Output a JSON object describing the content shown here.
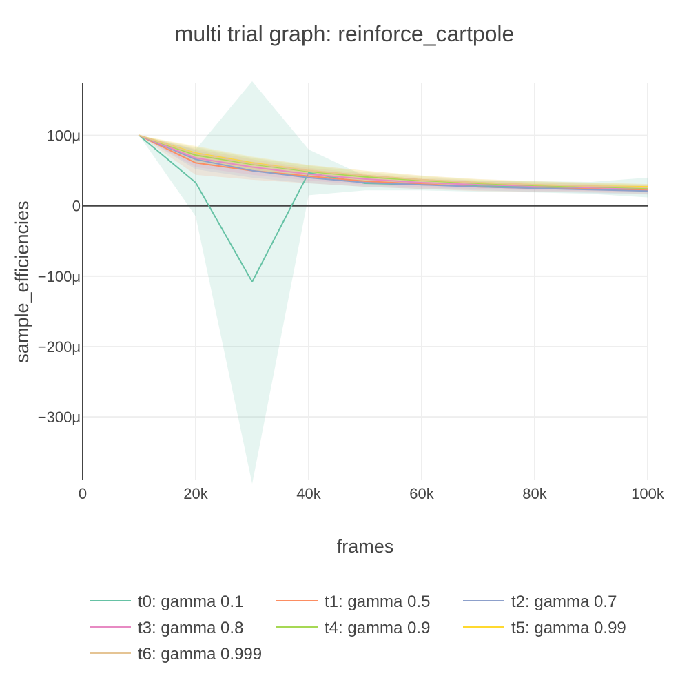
{
  "chart_data": {
    "type": "line",
    "title": "multi trial graph: reinforce_cartpole",
    "xlabel": "frames",
    "ylabel": "sample_efficiencies",
    "xlim": [
      0,
      100000
    ],
    "ylim": [
      -0.00039,
      0.000175
    ],
    "x_ticks": [
      0,
      20000,
      40000,
      60000,
      80000,
      100000
    ],
    "x_tick_labels": [
      "0",
      "20k",
      "40k",
      "60k",
      "80k",
      "100k"
    ],
    "y_ticks": [
      0.0001,
      0,
      -0.0001,
      -0.0002,
      -0.0003
    ],
    "y_tick_labels": [
      "100μ",
      "0",
      "−100μ",
      "−200μ",
      "−300μ"
    ],
    "grid": true,
    "legend_position": "bottom",
    "x": [
      10000,
      20000,
      30000,
      40000,
      50000,
      60000,
      70000,
      80000,
      90000,
      100000
    ],
    "series": [
      {
        "name": "t0: gamma 0.1",
        "color": "#66c2a5",
        "values": [
          0.0001,
          3.3e-05,
          -0.000108,
          4.7e-05,
          3.2e-05,
          3e-05,
          2.8e-05,
          2.7e-05,
          2.6e-05,
          2.6e-05
        ],
        "upper": [
          0.0001,
          8e-05,
          0.000177,
          8e-05,
          4.2e-05,
          3.8e-05,
          3.6e-05,
          3.5e-05,
          3.4e-05,
          4e-05
        ],
        "lower": [
          0.0001,
          -1.5e-05,
          -0.000395,
          1.5e-05,
          2.2e-05,
          2.2e-05,
          2e-05,
          1.9e-05,
          1.7e-05,
          1.2e-05
        ]
      },
      {
        "name": "t1: gamma 0.5",
        "color": "#fc8d62",
        "values": [
          0.0001,
          6.1e-05,
          5e-05,
          4.2e-05,
          3.5e-05,
          3.1e-05,
          2.7e-05,
          2.5e-05,
          2.4e-05,
          2.2e-05
        ],
        "upper": [
          0.0001,
          7.6e-05,
          6.3e-05,
          5.2e-05,
          4.3e-05,
          3.8e-05,
          3.3e-05,
          3e-05,
          2.9e-05,
          2.7e-05
        ],
        "lower": [
          0.0001,
          4.4e-05,
          3.7e-05,
          3.2e-05,
          2.7e-05,
          2.4e-05,
          2.1e-05,
          2e-05,
          1.9e-05,
          1.7e-05
        ]
      },
      {
        "name": "t2: gamma 0.7",
        "color": "#8da0cb",
        "values": [
          0.0001,
          6.6e-05,
          5e-05,
          4e-05,
          3.3e-05,
          3e-05,
          2.7e-05,
          2.5e-05,
          2.3e-05,
          2.1e-05
        ],
        "upper": [
          0.0001,
          7.9e-05,
          6.2e-05,
          5e-05,
          4.1e-05,
          3.6e-05,
          3.2e-05,
          3e-05,
          2.8e-05,
          2.6e-05
        ],
        "lower": [
          0.0001,
          5.2e-05,
          4e-05,
          3.2e-05,
          2.7e-05,
          2.4e-05,
          2.2e-05,
          2e-05,
          1.8e-05,
          1.6e-05
        ]
      },
      {
        "name": "t3: gamma 0.8",
        "color": "#e78ac3",
        "values": [
          0.0001,
          6.8e-05,
          5.5e-05,
          4.5e-05,
          3.8e-05,
          3.3e-05,
          3e-05,
          2.8e-05,
          2.6e-05,
          2.4e-05
        ],
        "upper": [
          0.0001,
          8.1e-05,
          6.6e-05,
          5.4e-05,
          4.6e-05,
          4e-05,
          3.6e-05,
          3.3e-05,
          3.1e-05,
          2.9e-05
        ],
        "lower": [
          0.0001,
          5.5e-05,
          4.4e-05,
          3.6e-05,
          3e-05,
          2.6e-05,
          2.4e-05,
          2.2e-05,
          2.1e-05,
          1.9e-05
        ]
      },
      {
        "name": "t4: gamma 0.9",
        "color": "#a6d854",
        "values": [
          0.0001,
          7.2e-05,
          5.9e-05,
          4.9e-05,
          4.1e-05,
          3.6e-05,
          3.2e-05,
          2.9e-05,
          2.7e-05,
          2.5e-05
        ],
        "upper": [
          0.0001,
          8.3e-05,
          6.8e-05,
          5.7e-05,
          4.8e-05,
          4.2e-05,
          3.7e-05,
          3.4e-05,
          3.2e-05,
          3e-05
        ],
        "lower": [
          0.0001,
          6.1e-05,
          5e-05,
          4.1e-05,
          3.4e-05,
          3e-05,
          2.7e-05,
          2.4e-05,
          2.2e-05,
          2e-05
        ]
      },
      {
        "name": "t5: gamma 0.99",
        "color": "#ffd92f",
        "values": [
          0.0001,
          7.5e-05,
          6.1e-05,
          5e-05,
          4.3e-05,
          3.7e-05,
          3.3e-05,
          3e-05,
          2.8e-05,
          2.7e-05
        ],
        "upper": [
          0.0001,
          8.5e-05,
          7e-05,
          5.8e-05,
          5e-05,
          4.3e-05,
          3.8e-05,
          3.5e-05,
          3.3e-05,
          3.1e-05
        ],
        "lower": [
          0.0001,
          6.5e-05,
          5.2e-05,
          4.2e-05,
          3.6e-05,
          3.1e-05,
          2.8e-05,
          2.5e-05,
          2.3e-05,
          2.2e-05
        ]
      },
      {
        "name": "t6: gamma 0.999",
        "color": "#e5c494",
        "values": [
          0.0001,
          7.4e-05,
          6e-05,
          5e-05,
          4.3e-05,
          3.7e-05,
          3.3e-05,
          3e-05,
          2.8e-05,
          2.6e-05
        ],
        "upper": [
          0.0001,
          8.4e-05,
          6.9e-05,
          5.8e-05,
          5e-05,
          4.3e-05,
          3.8e-05,
          3.5e-05,
          3.3e-05,
          3.1e-05
        ],
        "lower": [
          0.0001,
          6.4e-05,
          5.1e-05,
          4.2e-05,
          3.6e-05,
          3.1e-05,
          2.8e-05,
          2.5e-05,
          2.3e-05,
          2.1e-05
        ]
      }
    ]
  }
}
